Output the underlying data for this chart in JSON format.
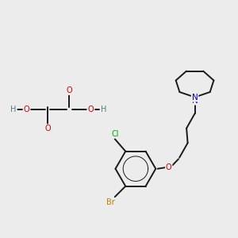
{
  "bg_color": "#ececec",
  "bond_color": "#1a1a1a",
  "bond_lw": 1.4,
  "atom_colors": {
    "N": "#0000cc",
    "O": "#cc0000",
    "Cl": "#00aa00",
    "Br": "#cc7700",
    "H": "#4d8080",
    "C": "#1a1a1a"
  },
  "font_size": 7.0,
  "fig_bg": "#ececec",
  "xlim": [
    0,
    10
  ],
  "ylim": [
    0,
    10
  ]
}
